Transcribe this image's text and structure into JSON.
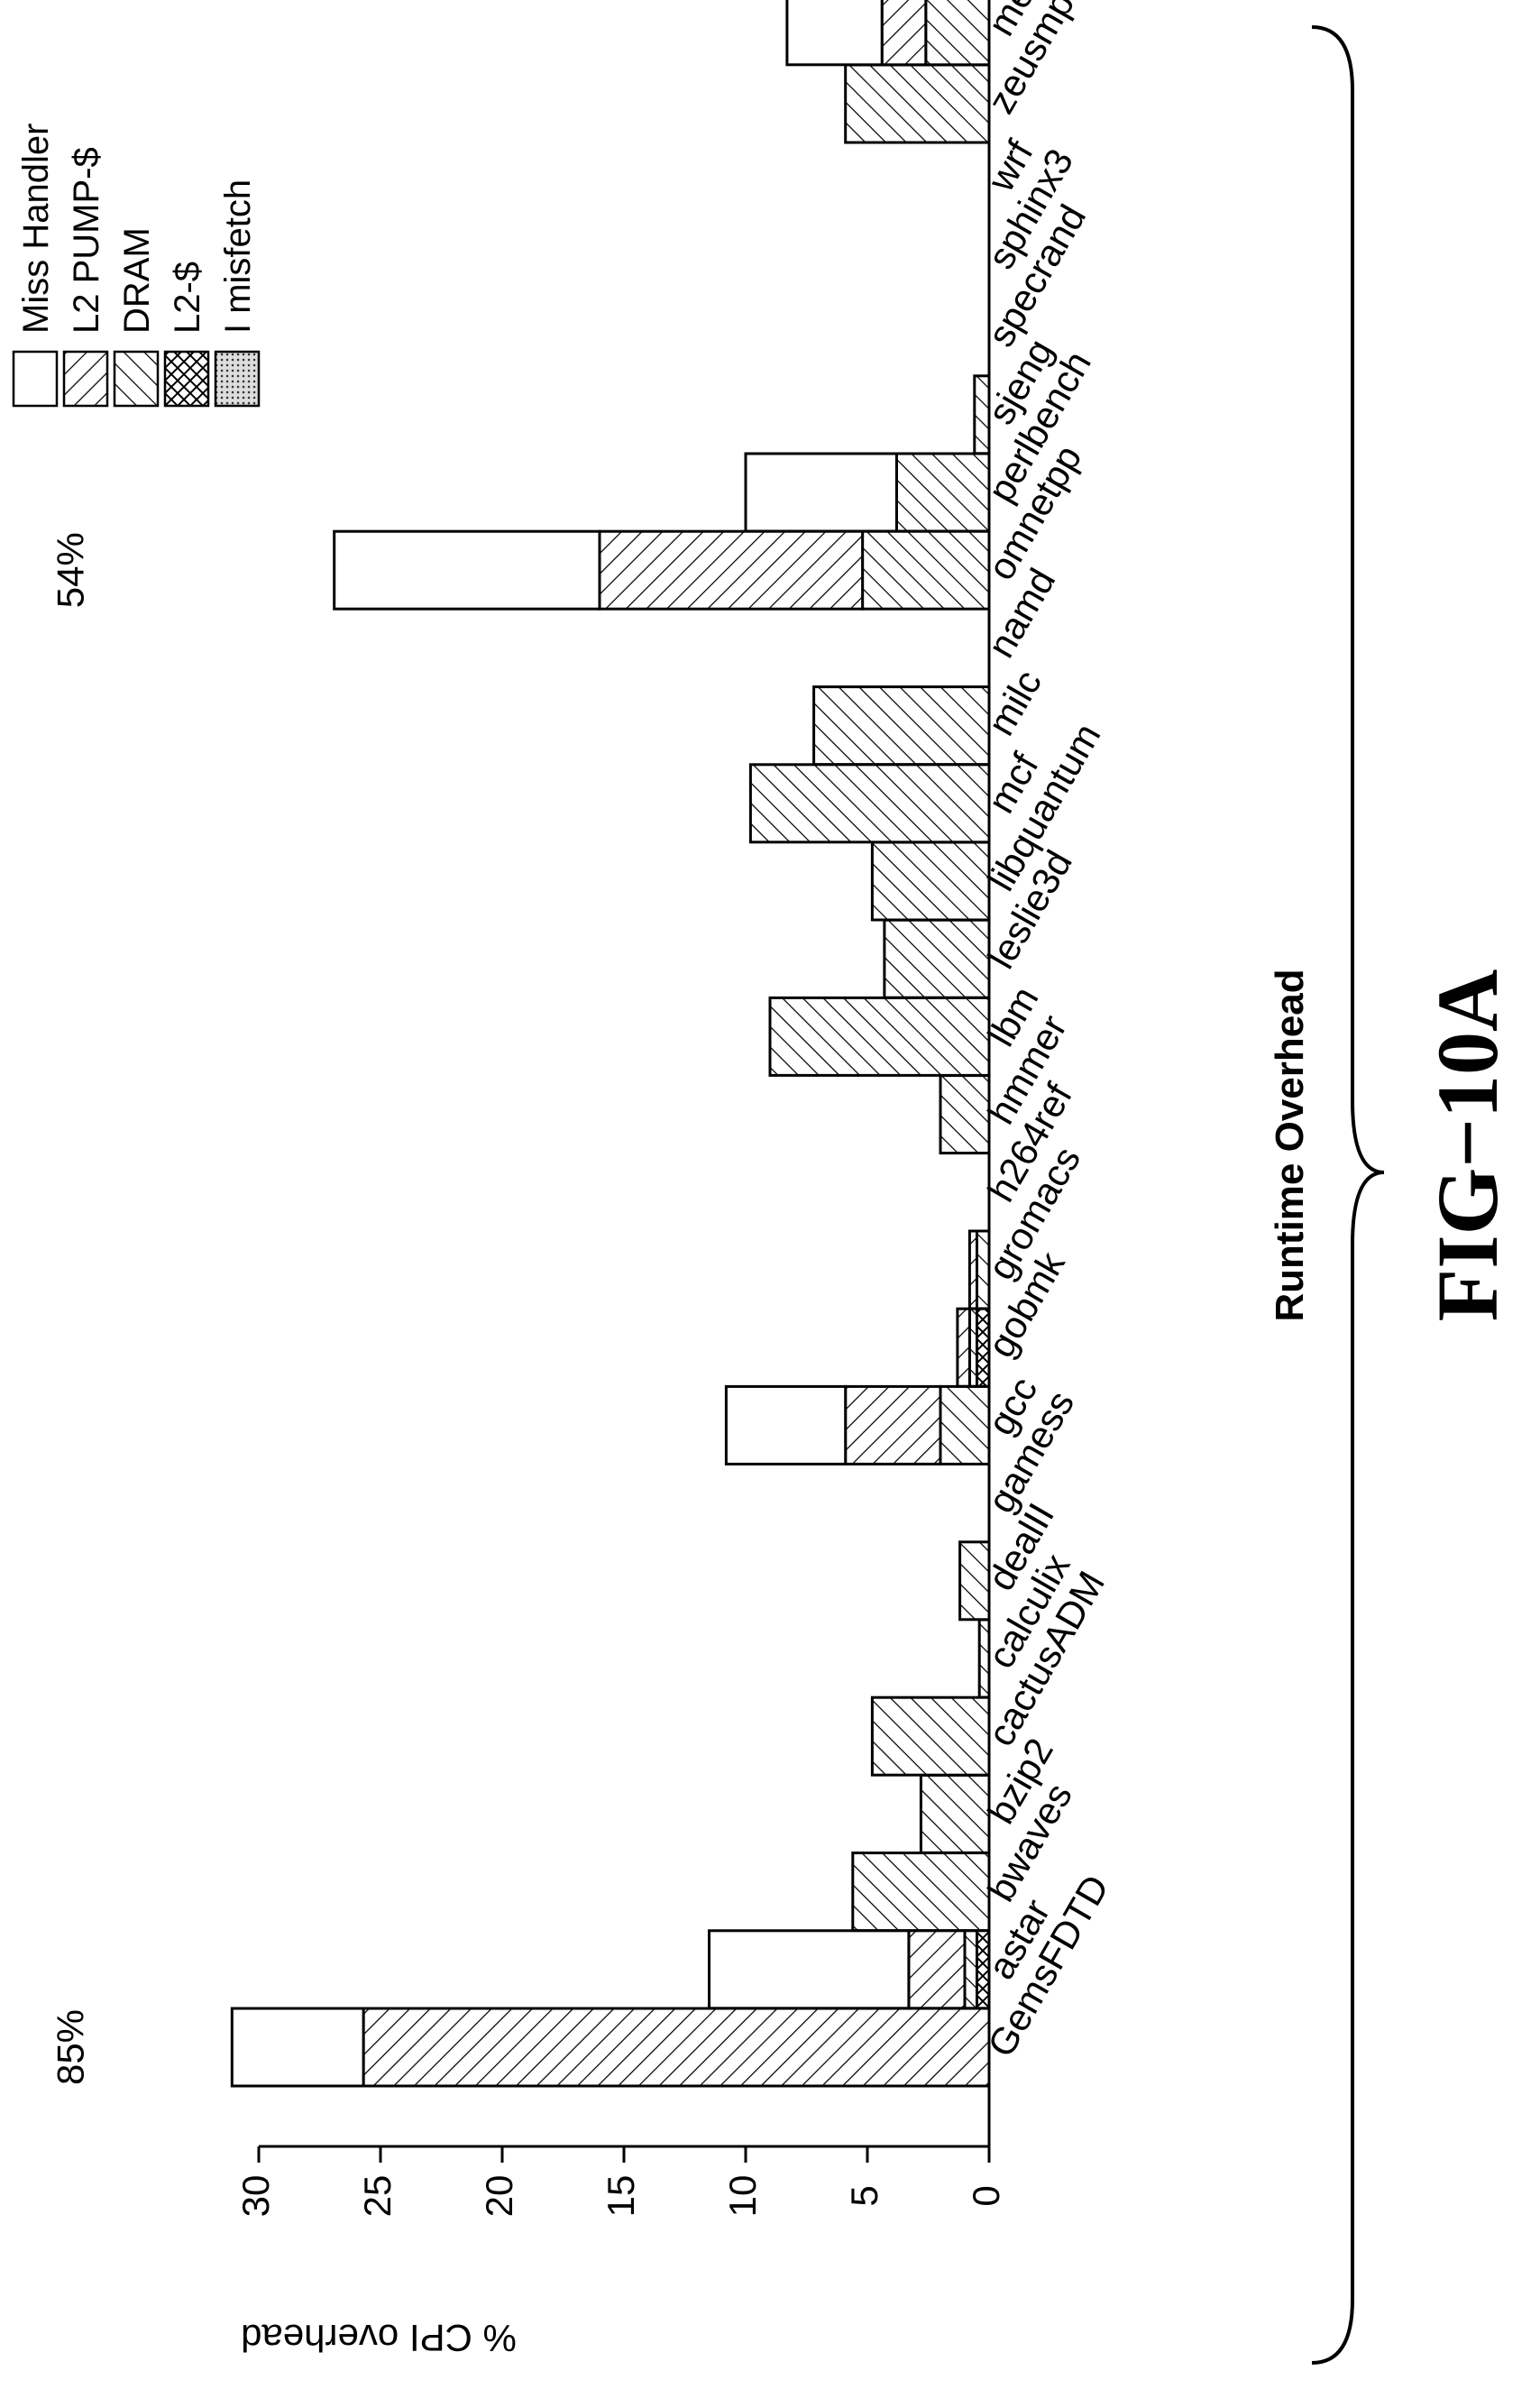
{
  "chart_data": {
    "type": "bar",
    "stacked": true,
    "orientation": "vertical (figure rotated 90°)",
    "categories": [
      "GemsFDTD",
      "astar",
      "bwaves",
      "bzip2",
      "cactusADM",
      "calculix",
      "dealII",
      "gamess",
      "gcc",
      "gobmk",
      "gromacs",
      "h264ref",
      "hmmer",
      "lbm",
      "leslie3d",
      "libquantum",
      "mcf",
      "milc",
      "namd",
      "omnetpp",
      "perlbench",
      "sjeng",
      "specrand",
      "sphinx3",
      "wrf",
      "zeusmp",
      "mean"
    ],
    "series": [
      {
        "name": "I misfetch",
        "key": "imisfetch",
        "pattern": "dots",
        "values": [
          0,
          0,
          0,
          0,
          0,
          0,
          0,
          0,
          0,
          0,
          0,
          0,
          0,
          0,
          0,
          0,
          0,
          0,
          0,
          0,
          0,
          0,
          0,
          0,
          0,
          0,
          0
        ]
      },
      {
        "name": "L2-$",
        "key": "l2cache",
        "pattern": "crosshatch",
        "values": [
          0,
          0.5,
          0,
          0,
          0,
          0,
          0,
          0,
          0,
          0.5,
          0,
          0,
          0,
          0,
          0,
          0,
          0,
          0,
          0,
          0,
          0,
          0,
          0,
          0,
          0,
          0,
          0
        ]
      },
      {
        "name": "DRAM",
        "key": "dram",
        "pattern": "diag-right",
        "values": [
          0,
          0.5,
          5.6,
          2.8,
          4.8,
          0.4,
          1.2,
          0,
          2.0,
          0.3,
          0.5,
          0,
          2.0,
          9.0,
          4.3,
          4.8,
          9.8,
          7.2,
          0,
          5.2,
          3.8,
          0.6,
          0,
          0,
          0,
          5.9,
          2.6
        ]
      },
      {
        "name": "L2 PUMP-$",
        "key": "l2pump",
        "pattern": "diag-left",
        "values": [
          25.7,
          2.3,
          0,
          0,
          0,
          0,
          0,
          0,
          3.9,
          0.5,
          0.3,
          0,
          0,
          0,
          0,
          0,
          0,
          0,
          0,
          10.8,
          0,
          0,
          0,
          0,
          0,
          0,
          1.8
        ]
      },
      {
        "name": "Miss Handler",
        "key": "miss",
        "pattern": "white",
        "values": [
          5.4,
          8.2,
          0,
          0,
          0,
          0,
          0,
          0,
          4.9,
          0,
          0,
          0,
          0,
          0,
          0,
          0,
          0,
          0,
          0,
          10.9,
          6.2,
          0,
          0,
          0,
          0,
          0,
          3.9
        ]
      }
    ],
    "ylabel": "% CPI overhead",
    "xlabel": "Runtime Overhead",
    "yticks": [
      0,
      5,
      10,
      15,
      20,
      25,
      30
    ],
    "ylim": [
      0,
      30
    ],
    "annotations": [
      {
        "category": "GemsFDTD",
        "text": "85%"
      },
      {
        "category": "omnetpp",
        "text": "54%"
      }
    ],
    "legend": {
      "placement": "top-right (rotated)"
    },
    "grid": false
  },
  "figure_label": "FIG−10A"
}
